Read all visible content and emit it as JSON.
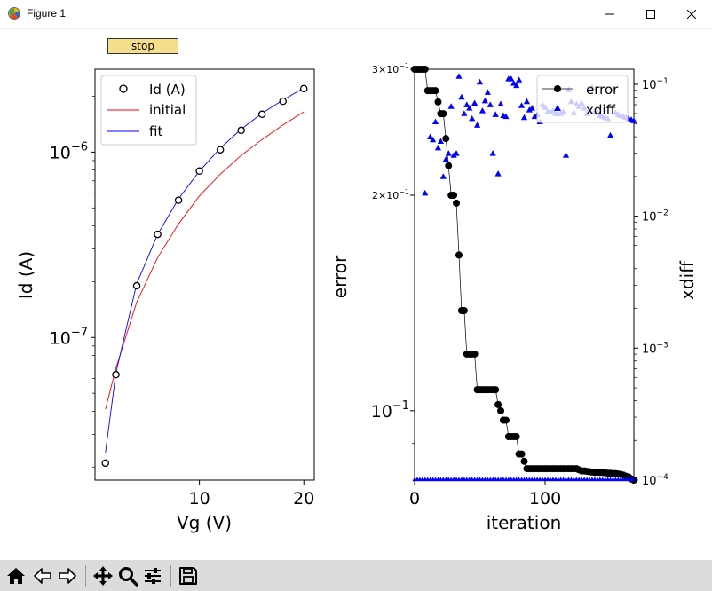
{
  "window": {
    "title": "Figure 1"
  },
  "controls": {
    "stop_label": "stop"
  },
  "toolbar": {
    "icons": [
      "home-icon",
      "back-icon",
      "forward-icon",
      "pan-icon",
      "zoom-icon",
      "configure-subplots-icon",
      "save-icon"
    ]
  },
  "chart_data": [
    {
      "type": "scatter",
      "xlabel": "Vg (V)",
      "ylabel": "Id (A)",
      "xlim": [
        0,
        21
      ],
      "ylim": [
        1.7e-08,
        2.8e-06
      ],
      "yscale": "log",
      "x_ticks": [
        10,
        20
      ],
      "y_ticks": [
        {
          "value": 1e-07,
          "label": "10−7"
        },
        {
          "value": 1e-06,
          "label": "10−6"
        }
      ],
      "grid": false,
      "legend": "upper-left",
      "series": [
        {
          "name": "Id (A)",
          "style": "markers",
          "marker": "open-circle",
          "color": "#000000",
          "x": [
            1,
            2,
            4,
            6,
            8,
            10,
            12,
            14,
            16,
            18,
            20
          ],
          "y": [
            2.1e-08,
            6.3e-08,
            1.9e-07,
            3.6e-07,
            5.5e-07,
            7.9e-07,
            1.03e-06,
            1.31e-06,
            1.6e-06,
            1.88e-06,
            2.2e-06
          ]
        },
        {
          "name": "initial",
          "style": "line",
          "color": "#ff0000",
          "x": [
            1,
            2,
            4,
            6,
            8,
            10,
            12,
            14,
            16,
            18,
            20
          ],
          "y": [
            4.1e-08,
            6.8e-08,
            1.55e-07,
            2.7e-07,
            4.1e-07,
            5.8e-07,
            7.6e-07,
            9.6e-07,
            1.17e-06,
            1.4e-06,
            1.65e-06
          ]
        },
        {
          "name": "fit",
          "style": "line",
          "color": "#0000ff",
          "x": [
            1,
            2,
            4,
            6,
            8,
            10,
            12,
            14,
            16,
            18,
            20
          ],
          "y": [
            2.4e-08,
            6.4e-08,
            1.95e-07,
            3.6e-07,
            5.6e-07,
            7.9e-07,
            1.05e-06,
            1.33e-06,
            1.62e-06,
            1.91e-06,
            2.22e-06
          ]
        }
      ]
    },
    {
      "type": "line",
      "xlabel": "iteration",
      "ylabel": "error",
      "y2label": "xdiff",
      "xlim": [
        0,
        168
      ],
      "ylim": [
        0.08,
        0.3
      ],
      "yscale": "log",
      "y2lim": [
        0.0001,
        0.13
      ],
      "y2scale": "log",
      "x_ticks": [
        0,
        100
      ],
      "y_ticks": [
        {
          "value": 0.1,
          "label": "10−1"
        },
        {
          "value": 0.2,
          "label": "2×10−1"
        },
        {
          "value": 0.3,
          "label": "3×10−1"
        }
      ],
      "y2_ticks": [
        {
          "value": 0.0001,
          "label": "10−4"
        },
        {
          "value": 0.001,
          "label": "10−3"
        },
        {
          "value": 0.01,
          "label": "10−2"
        },
        {
          "value": 0.1,
          "label": "10−1"
        }
      ],
      "grid": false,
      "legend": "upper-right",
      "series": [
        {
          "name": "error",
          "axis": "left",
          "style": "line+markers",
          "marker": "filled-circle",
          "color": "#000000",
          "points": [
            [
              0,
              0.3
            ],
            [
              2,
              0.3
            ],
            [
              4,
              0.3
            ],
            [
              6,
              0.3
            ],
            [
              8,
              0.3
            ],
            [
              10,
              0.28
            ],
            [
              12,
              0.28
            ],
            [
              14,
              0.28
            ],
            [
              16,
              0.28
            ],
            [
              18,
              0.27
            ],
            [
              20,
              0.26
            ],
            [
              22,
              0.26
            ],
            [
              24,
              0.24
            ],
            [
              26,
              0.22
            ],
            [
              28,
              0.2
            ],
            [
              30,
              0.2
            ],
            [
              32,
              0.195
            ],
            [
              34,
              0.165
            ],
            [
              36,
              0.138
            ],
            [
              38,
              0.138
            ],
            [
              40,
              0.12
            ],
            [
              42,
              0.12
            ],
            [
              44,
              0.12
            ],
            [
              46,
              0.12
            ],
            [
              48,
              0.107
            ],
            [
              50,
              0.107
            ],
            [
              52,
              0.107
            ],
            [
              54,
              0.107
            ],
            [
              56,
              0.107
            ],
            [
              58,
              0.107
            ],
            [
              60,
              0.107
            ],
            [
              62,
              0.107
            ],
            [
              64,
              0.102
            ],
            [
              66,
              0.1
            ],
            [
              68,
              0.097
            ],
            [
              70,
              0.097
            ],
            [
              72,
              0.092
            ],
            [
              74,
              0.092
            ],
            [
              76,
              0.092
            ],
            [
              78,
              0.092
            ],
            [
              80,
              0.087
            ],
            [
              82,
              0.087
            ],
            [
              84,
              0.085
            ],
            [
              86,
              0.083
            ],
            [
              88,
              0.083
            ],
            [
              90,
              0.083
            ],
            [
              92,
              0.083
            ],
            [
              94,
              0.083
            ],
            [
              96,
              0.083
            ],
            [
              98,
              0.083
            ],
            [
              100,
              0.083
            ],
            [
              102,
              0.083
            ],
            [
              104,
              0.083
            ],
            [
              106,
              0.083
            ],
            [
              108,
              0.083
            ],
            [
              110,
              0.083
            ],
            [
              112,
              0.083
            ],
            [
              114,
              0.083
            ],
            [
              116,
              0.083
            ],
            [
              118,
              0.083
            ],
            [
              120,
              0.083
            ],
            [
              122,
              0.083
            ],
            [
              124,
              0.083
            ],
            [
              126,
              0.0827
            ],
            [
              128,
              0.0824
            ],
            [
              130,
              0.0824
            ],
            [
              132,
              0.0823
            ],
            [
              134,
              0.0822
            ],
            [
              136,
              0.0821
            ],
            [
              138,
              0.082
            ],
            [
              140,
              0.082
            ],
            [
              142,
              0.082
            ],
            [
              144,
              0.082
            ],
            [
              146,
              0.0819
            ],
            [
              148,
              0.0818
            ],
            [
              150,
              0.0818
            ],
            [
              152,
              0.0817
            ],
            [
              154,
              0.0817
            ],
            [
              156,
              0.0816
            ],
            [
              158,
              0.0815
            ],
            [
              160,
              0.0813
            ],
            [
              162,
              0.081
            ],
            [
              164,
              0.0808
            ],
            [
              166,
              0.0803
            ],
            [
              168,
              0.08
            ]
          ]
        },
        {
          "name": "xdiff",
          "axis": "right",
          "style": "markers",
          "marker": "triangle",
          "color": "#0000ff",
          "points": [
            [
              8,
              0.015
            ],
            [
              12,
              0.04
            ],
            [
              14,
              0.038
            ],
            [
              16,
              0.052
            ],
            [
              18,
              0.033
            ],
            [
              20,
              0.037
            ],
            [
              22,
              0.02
            ],
            [
              24,
              0.027
            ],
            [
              26,
              0.03
            ],
            [
              28,
              0.068
            ],
            [
              30,
              0.029
            ],
            [
              32,
              0.03
            ],
            [
              34,
              0.115
            ],
            [
              36,
              0.08
            ],
            [
              38,
              0.06
            ],
            [
              40,
              0.07
            ],
            [
              42,
              0.066
            ],
            [
              44,
              0.055
            ],
            [
              46,
              0.072
            ],
            [
              48,
              0.049
            ],
            [
              50,
              0.104
            ],
            [
              52,
              0.063
            ],
            [
              54,
              0.075
            ],
            [
              56,
              0.087
            ],
            [
              58,
              0.07
            ],
            [
              60,
              0.03
            ],
            [
              62,
              0.059
            ],
            [
              64,
              0.021
            ],
            [
              66,
              0.071
            ],
            [
              68,
              0.058
            ],
            [
              70,
              0.057
            ],
            [
              72,
              0.11
            ],
            [
              74,
              0.11
            ],
            [
              76,
              0.102
            ],
            [
              78,
              0.098
            ],
            [
              80,
              0.108
            ],
            [
              82,
              0.069
            ],
            [
              84,
              0.056
            ],
            [
              86,
              0.074
            ],
            [
              88,
              0.064
            ],
            [
              90,
              0.066
            ],
            [
              92,
              0.057
            ],
            [
              94,
              0.059
            ],
            [
              96,
              0.052
            ],
            [
              98,
              0.07
            ],
            [
              100,
              0.067
            ],
            [
              102,
              0.062
            ],
            [
              104,
              0.062
            ],
            [
              106,
              0.063
            ],
            [
              108,
              0.06
            ],
            [
              110,
              0.06
            ],
            [
              112,
              0.06
            ],
            [
              114,
              0.062
            ],
            [
              116,
              0.029
            ],
            [
              118,
              0.091
            ],
            [
              120,
              0.074
            ],
            [
              122,
              0.061
            ],
            [
              124,
              0.071
            ],
            [
              126,
              0.068
            ],
            [
              128,
              0.072
            ],
            [
              130,
              0.066
            ],
            [
              132,
              0.06
            ],
            [
              134,
              0.063
            ],
            [
              136,
              0.095
            ],
            [
              138,
              0.062
            ],
            [
              140,
              0.061
            ],
            [
              142,
              0.058
            ],
            [
              144,
              0.057
            ],
            [
              146,
              0.056
            ],
            [
              148,
              0.055
            ],
            [
              150,
              0.041
            ],
            [
              152,
              0.092
            ],
            [
              154,
              0.061
            ],
            [
              156,
              0.059
            ],
            [
              158,
              0.058
            ],
            [
              160,
              0.057
            ],
            [
              162,
              0.056
            ],
            [
              164,
              0.055
            ],
            [
              166,
              0.054
            ],
            [
              168,
              0.053
            ]
          ],
          "baseline_points": {
            "value": 0.0001,
            "from": 0,
            "to": 168,
            "step": 2
          }
        }
      ]
    }
  ]
}
